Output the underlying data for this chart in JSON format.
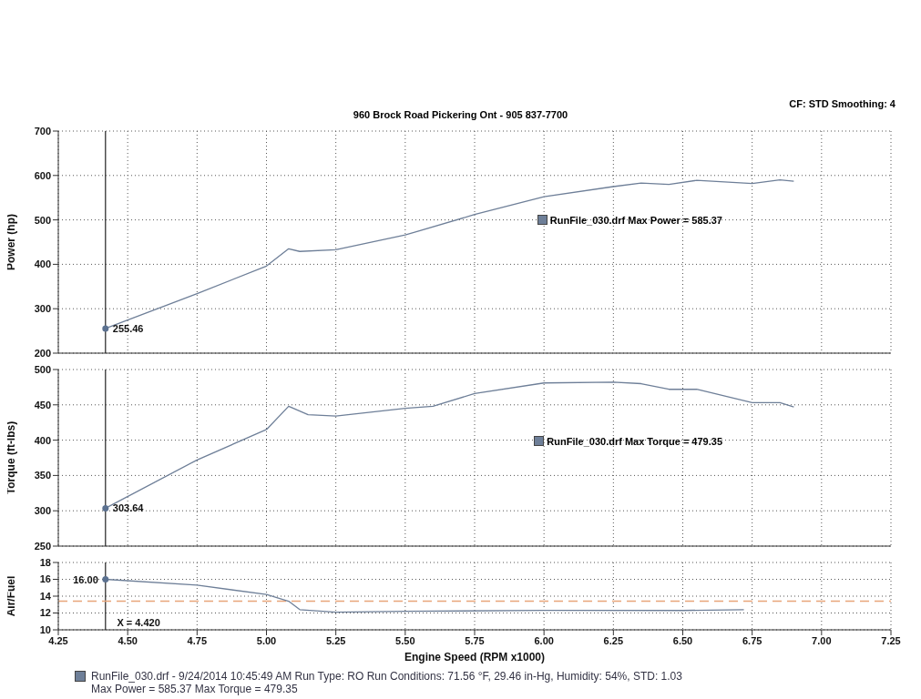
{
  "chart_data": [
    {
      "type": "line",
      "subtitle": "960 Brock Road Pickering Ont - 905 837-7700",
      "annotations": [
        "CF: STD  Smoothing: 4",
        "255.46"
      ],
      "ylabel": "Power (hp)",
      "xlim": [
        4.25,
        7.25
      ],
      "xticks": [
        4.25,
        4.5,
        4.75,
        5,
        5.25,
        5.5,
        5.75,
        6,
        6.25,
        6.5,
        6.75,
        7,
        7.25
      ],
      "ylim": [
        200,
        700
      ],
      "yticks": [
        200,
        300,
        400,
        500,
        600,
        700
      ],
      "grid": true,
      "tick_labels": "y",
      "legend": "right",
      "line_style": "solid",
      "ref_lines": [
        {
          "axis": "x",
          "value": 4.42,
          "color": "#222222"
        }
      ],
      "series": [
        {
          "name": "RunFile_030.drf Max Power = 585.37",
          "color": "#6e7f98",
          "x": [
            4.42,
            4.75,
            5.0,
            5.08,
            5.12,
            5.25,
            5.5,
            5.75,
            6.0,
            6.25,
            6.35,
            6.45,
            6.55,
            6.75,
            6.85,
            6.9
          ],
          "values": [
            255.46,
            334,
            396,
            435,
            429,
            433,
            466,
            512,
            552,
            575,
            583,
            580,
            589,
            582,
            590,
            587
          ]
        }
      ]
    },
    {
      "type": "line",
      "annotations": [
        "303.64"
      ],
      "ylabel": "Torque (ft-lbs)",
      "xlim": [
        4.25,
        7.25
      ],
      "xticks": [
        4.25,
        4.5,
        4.75,
        5,
        5.25,
        5.5,
        5.75,
        6,
        6.25,
        6.5,
        6.75,
        7,
        7.25
      ],
      "ylim": [
        250,
        500
      ],
      "yticks": [
        250,
        300,
        350,
        400,
        450,
        500
      ],
      "grid": true,
      "tick_labels": "y",
      "legend": "right",
      "line_style": "solid",
      "ref_lines": [
        {
          "axis": "x",
          "value": 4.42,
          "color": "#222222"
        }
      ],
      "series": [
        {
          "name": "RunFile_030.drf Max Torque = 479.35",
          "color": "#6e7f98",
          "x": [
            4.42,
            4.75,
            5.0,
            5.08,
            5.15,
            5.25,
            5.5,
            5.6,
            5.75,
            6.0,
            6.25,
            6.35,
            6.45,
            6.55,
            6.75,
            6.85,
            6.9
          ],
          "values": [
            303.64,
            372,
            415,
            448,
            436,
            434,
            445,
            448,
            466,
            481,
            482,
            480,
            472,
            472,
            453,
            453,
            447
          ]
        }
      ]
    },
    {
      "type": "line",
      "annotations": [
        "16.00",
        "RunFile_030.drf - 9/24/2014 10:45:49 AM  Run Type: RO  Run Conditions: 71.56 °F, 29.46 in-Hg,  Humidity:  54%, STD: 1.03",
        "Max Power = 585.37  Max Torque = 479.35"
      ],
      "ylabel": "Air/Fuel",
      "xlabel": "Engine Speed (RPM x1000)",
      "xlim": [
        4.25,
        7.25
      ],
      "xticks": [
        {
          "value": 4.25,
          "label": "4.25"
        },
        {
          "value": 4.5,
          "label": "4.50"
        },
        {
          "value": 4.75,
          "label": "4.75"
        },
        {
          "value": 5,
          "label": "5.00"
        },
        {
          "value": 5.25,
          "label": "5.25"
        },
        {
          "value": 5.5,
          "label": "5.50"
        },
        {
          "value": 5.75,
          "label": "5.75"
        },
        {
          "value": 6,
          "label": "6.00"
        },
        {
          "value": 6.25,
          "label": "6.25"
        },
        {
          "value": 6.5,
          "label": "6.50"
        },
        {
          "value": 6.75,
          "label": "6.75"
        },
        {
          "value": 7,
          "label": "7.00"
        },
        {
          "value": 7.25,
          "label": "7.25"
        }
      ],
      "ylim": [
        10,
        18
      ],
      "yticks": [
        10,
        12,
        14,
        16,
        18
      ],
      "grid": true,
      "line_style": "solid",
      "marker": "none",
      "ref_lines": [
        {
          "axis": "x",
          "value": 4.42,
          "label": "X = 4.420",
          "color": "#222222"
        },
        {
          "axis": "y",
          "value": 13.4,
          "color": "#e8a57a",
          "line_style": "dashed"
        }
      ],
      "series": [
        {
          "color": "#6e7f98",
          "x": [
            4.42,
            4.75,
            5.0,
            5.08,
            5.12,
            5.25,
            5.5,
            6.0,
            6.5,
            6.72
          ],
          "values": [
            16.0,
            15.3,
            14.2,
            13.4,
            12.4,
            12.1,
            12.2,
            12.3,
            12.3,
            12.4
          ]
        }
      ]
    }
  ]
}
